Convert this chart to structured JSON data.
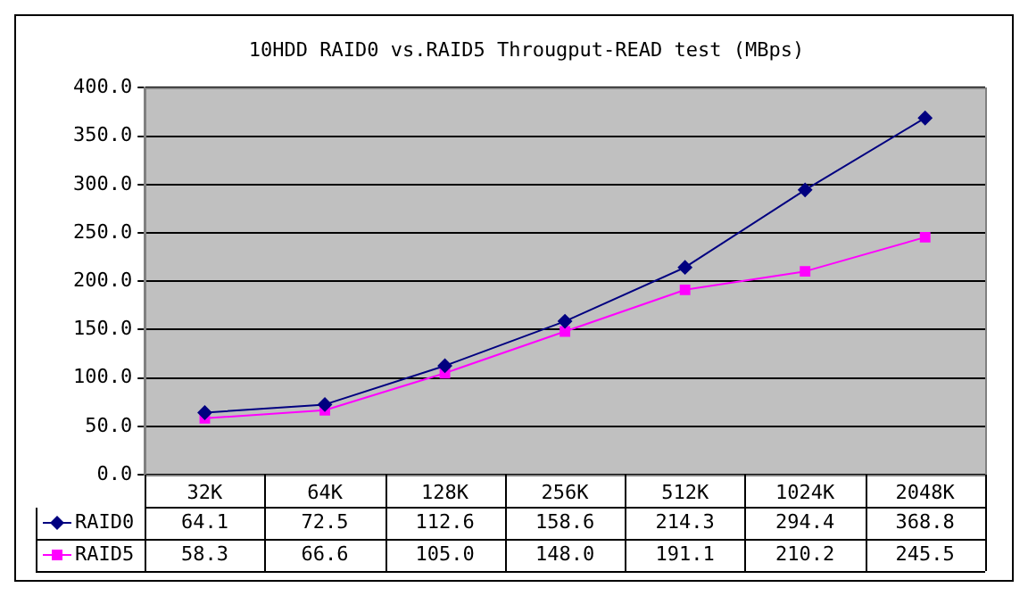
{
  "chart_data": {
    "type": "line",
    "title": "10HDD RAID0 vs.RAID5 Througput-READ test (MBps)",
    "categories": [
      "32K",
      "64K",
      "128K",
      "256K",
      "512K",
      "1024K",
      "2048K"
    ],
    "series": [
      {
        "name": "RAID0",
        "color": "#000080",
        "marker": "diamond",
        "values": [
          64.1,
          72.5,
          112.6,
          158.6,
          214.3,
          294.4,
          368.8
        ],
        "value_labels": [
          "64.1",
          "72.5",
          "112.6",
          "158.6",
          "214.3",
          "294.4",
          "368.8"
        ]
      },
      {
        "name": "RAID5",
        "color": "#ff00ff",
        "marker": "square",
        "values": [
          58.3,
          66.6,
          105.0,
          148.0,
          191.1,
          210.2,
          245.5
        ],
        "value_labels": [
          "58.3",
          "66.6",
          "105.0",
          "148.0",
          "191.1",
          "210.2",
          "245.5"
        ]
      }
    ],
    "ylim": [
      0,
      400
    ],
    "yticks": [
      {
        "value": 0,
        "label": "0.0"
      },
      {
        "value": 50,
        "label": "50.0"
      },
      {
        "value": 100,
        "label": "100.0"
      },
      {
        "value": 150,
        "label": "150.0"
      },
      {
        "value": 200,
        "label": "200.0"
      },
      {
        "value": 250,
        "label": "250.0"
      },
      {
        "value": 300,
        "label": "300.0"
      },
      {
        "value": 350,
        "label": "350.0"
      },
      {
        "value": 400,
        "label": "400.0"
      }
    ],
    "grid": "y",
    "legend": "bottom"
  }
}
